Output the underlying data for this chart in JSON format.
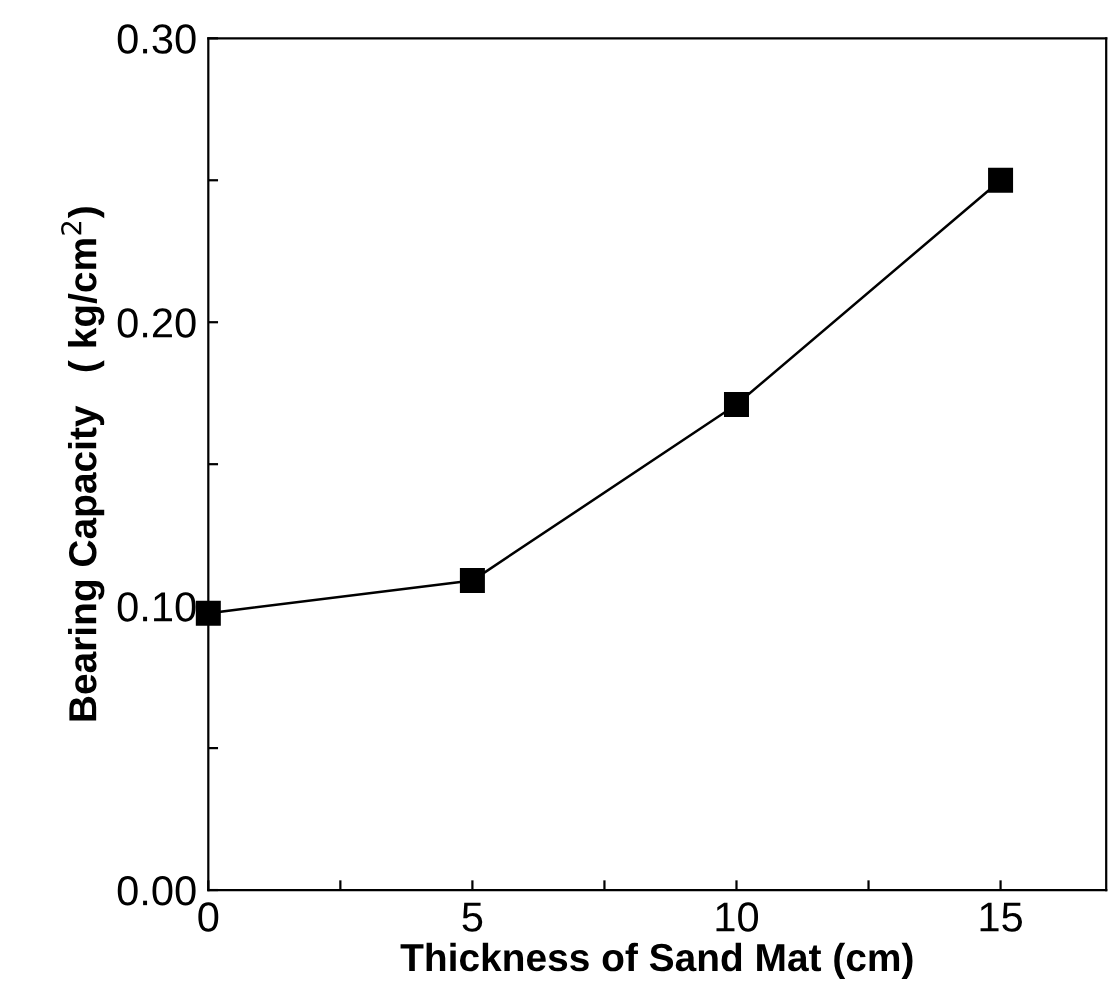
{
  "chart_data": {
    "type": "line",
    "xlabel": "Thickness of Sand Mat (cm)",
    "ylabel": "Bearing Capacity   ( kg/cm$^{2}$)",
    "x": [
      0,
      5,
      10,
      15
    ],
    "series": [
      {
        "color": "#000000",
        "values": [
          0.0975,
          0.109,
          0.171,
          0.25
        ]
      }
    ],
    "marker": "square",
    "line_style": "solid",
    "grid": false,
    "legend": false,
    "xlim": [
      0,
      17
    ],
    "ylim": [
      0,
      0.3
    ],
    "xticks": [
      0,
      {
        "value": 2.5,
        "label": null
      },
      5,
      {
        "value": 7.5,
        "label": null
      },
      10,
      {
        "value": 12.5,
        "label": null
      },
      15
    ],
    "yticks": [
      {
        "value": 0,
        "label": "0.00"
      },
      {
        "value": 0.05,
        "label": null
      },
      {
        "value": 0.1,
        "label": "0.10"
      },
      {
        "value": 0.15,
        "label": null
      },
      {
        "value": 0.2,
        "label": "0.20"
      },
      {
        "value": 0.25,
        "label": null
      },
      {
        "value": 0.3,
        "label": "0.30"
      }
    ]
  }
}
